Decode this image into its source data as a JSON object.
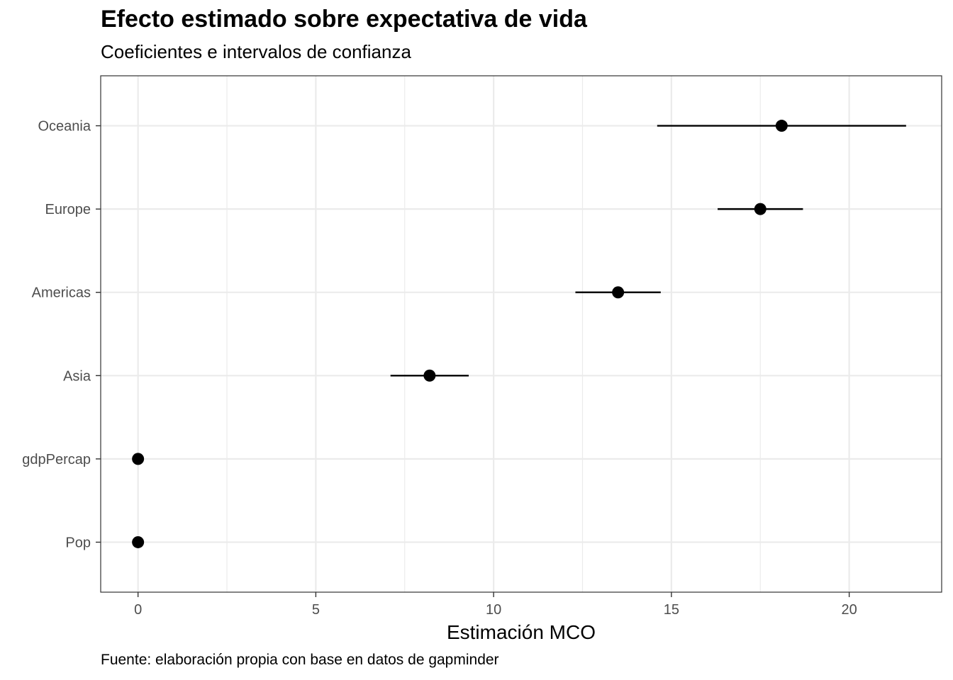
{
  "chart_data": {
    "type": "scatter",
    "subtype": "coefficient-plot-with-confidence-intervals",
    "title": "Efecto estimado sobre expectativa de vida",
    "subtitle": "Coeficientes e intervalos de confianza",
    "xlabel": "Estimación MCO",
    "ylabel": "",
    "caption": "Fuente: elaboración propia con base en datos de gapminder",
    "xlim": [
      -1.05,
      22.6
    ],
    "xticks": [
      0,
      5,
      10,
      15,
      20
    ],
    "xtick_labels": [
      "0",
      "5",
      "10",
      "15",
      "20"
    ],
    "categories": [
      "Pop",
      "gdpPercap",
      "Asia",
      "Americas",
      "Europe",
      "Oceania"
    ],
    "estimates": [
      0.0,
      0.0,
      8.2,
      13.5,
      17.5,
      18.1
    ],
    "ci_low": [
      0.0,
      0.0,
      7.1,
      12.3,
      16.3,
      14.6
    ],
    "ci_high": [
      0.0,
      0.0,
      9.3,
      14.7,
      18.7,
      21.6
    ],
    "grid": true,
    "legend": "none",
    "theme": "bw",
    "point_color": "#000000",
    "grid_color": "#ebebeb",
    "panel_border_color": "#333333"
  }
}
